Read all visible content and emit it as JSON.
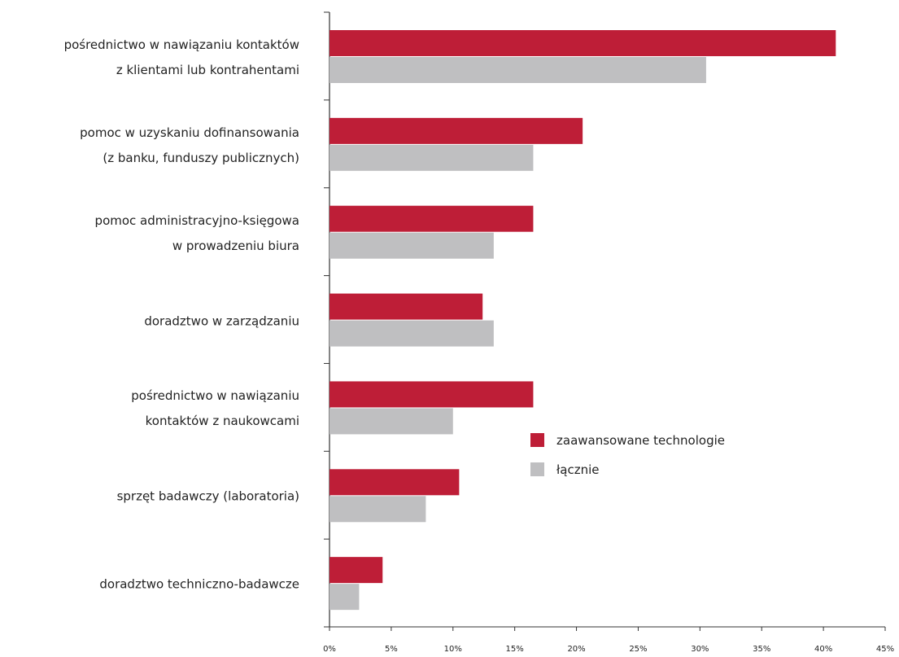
{
  "chart_data": {
    "type": "bar",
    "orientation": "horizontal",
    "categories": [
      "pośrednictwo w nawiązaniu kontaktów\nz klientami lub kontrahentami",
      "pomoc w uzyskaniu dofinansowania\n(z banku, funduszy publicznych)",
      "pomoc administracyjno-księgowa\nw prowadzeniu biura",
      "doradztwo w zarządzaniu",
      "pośrednictwo w nawiązaniu\nkontaktów z naukowcami",
      "sprzęt badawczy (laboratoria)",
      "doradztwo techniczno-badawcze"
    ],
    "series": [
      {
        "name": "zaawansowane technologie",
        "color": "#be1e37",
        "values": [
          41,
          20.5,
          16.5,
          12.4,
          16.5,
          10.5,
          4.3
        ]
      },
      {
        "name": "łącznie",
        "color": "#bfbfc1",
        "values": [
          30.5,
          16.5,
          13.3,
          13.3,
          10,
          7.8,
          2.4
        ]
      }
    ],
    "xlim": [
      0,
      45
    ],
    "xticks": [
      {
        "value": 0,
        "label": "0%"
      },
      {
        "value": 5,
        "label": "5%"
      },
      {
        "value": 10,
        "label": "10%"
      },
      {
        "value": 15,
        "label": "15%"
      },
      {
        "value": 20,
        "label": "20%"
      },
      {
        "value": 25,
        "label": "25%"
      },
      {
        "value": 30,
        "label": "30%"
      },
      {
        "value": 35,
        "label": "35%"
      },
      {
        "value": 40,
        "label": "40%"
      },
      {
        "value": 45,
        "label": "45%"
      }
    ],
    "grid": false,
    "legend": "right"
  }
}
